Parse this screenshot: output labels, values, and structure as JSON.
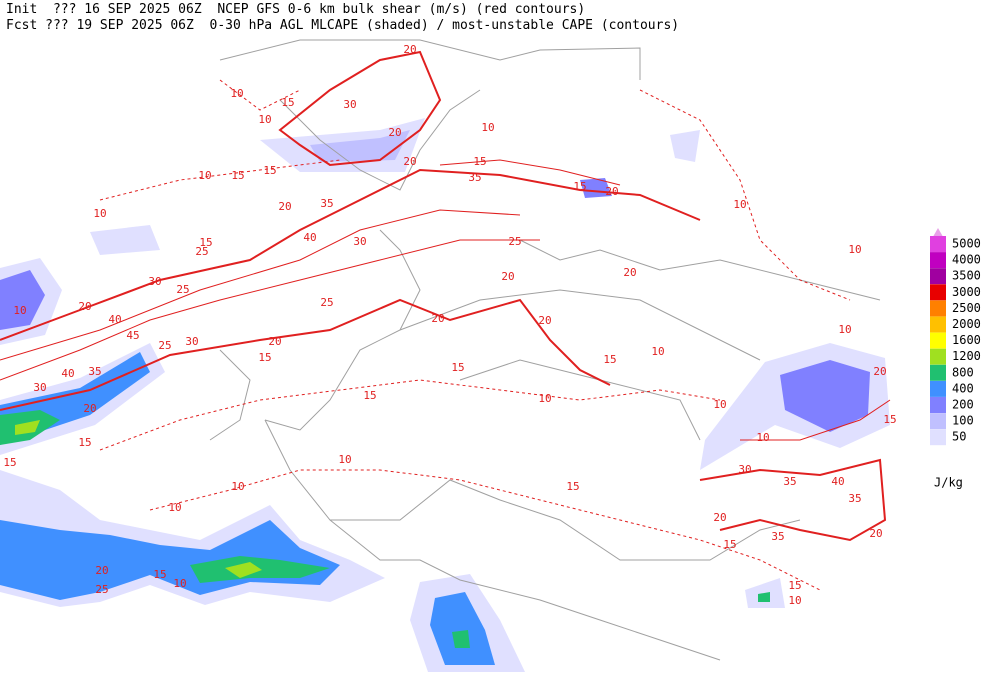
{
  "header": {
    "line1": "Init  ??? 16 SEP 2025 06Z  NCEP GFS 0-6 km bulk shear (m/s) (red contours)",
    "line2": "Fcst ??? 19 SEP 2025 06Z  0-30 hPa AGL MLCAPE (shaded) / most-unstable CAPE (contours)"
  },
  "colorbar": {
    "unit": "J/kg",
    "levels": [
      {
        "label": "5000",
        "color": "#e040e0"
      },
      {
        "label": "4000",
        "color": "#c000c0"
      },
      {
        "label": "3500",
        "color": "#a000a0"
      },
      {
        "label": "3000",
        "color": "#e80000"
      },
      {
        "label": "2500",
        "color": "#ff8000"
      },
      {
        "label": "2000",
        "color": "#ffc000"
      },
      {
        "label": "1600",
        "color": "#ffff00"
      },
      {
        "label": "1200",
        "color": "#a0e020"
      },
      {
        "label": "800",
        "color": "#20c070"
      },
      {
        "label": "400",
        "color": "#4090ff"
      },
      {
        "label": "200",
        "color": "#8080ff"
      },
      {
        "label": "100",
        "color": "#c0c0ff"
      },
      {
        "label": "50",
        "color": "#e0e0ff"
      }
    ]
  },
  "contour_labels": [
    "20",
    "10",
    "15",
    "30",
    "10",
    "20",
    "20",
    "15",
    "35",
    "15",
    "10",
    "15",
    "10",
    "20",
    "10",
    "15",
    "20",
    "35",
    "10",
    "40",
    "15",
    "25",
    "30",
    "25",
    "30",
    "25",
    "20",
    "20",
    "10",
    "10",
    "20",
    "40",
    "25",
    "20",
    "20",
    "45",
    "25",
    "30",
    "20",
    "35",
    "40",
    "30",
    "15",
    "15",
    "15",
    "10",
    "10",
    "20",
    "15",
    "10",
    "20",
    "10",
    "15",
    "15",
    "10",
    "10",
    "15",
    "30",
    "35",
    "40",
    "35",
    "15",
    "10",
    "10",
    "20",
    "35",
    "20",
    "15",
    "20",
    "15",
    "10",
    "25",
    "15",
    "10"
  ]
}
